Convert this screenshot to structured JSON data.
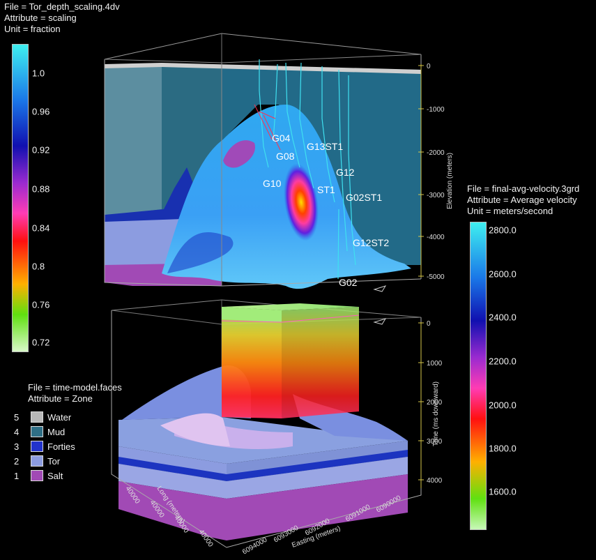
{
  "depth_scaling": {
    "file": "File = Tor_depth_scaling.4dv",
    "attribute": "Attribute = scaling",
    "unit": "Unit = fraction",
    "ticks": [
      "1.0",
      "0.96",
      "0.92",
      "0.88",
      "0.84",
      "0.8",
      "0.76",
      "0.72"
    ]
  },
  "velocity": {
    "file": "File = final-avg-velocity.3grd",
    "attribute": "Attribute = Average velocity",
    "unit": "Unit = meters/second",
    "ticks": [
      "2800.0",
      "2600.0",
      "2400.0",
      "2200.0",
      "2000.0",
      "1800.0",
      "1600.0"
    ]
  },
  "zones": {
    "file": "File = time-model.faces",
    "attribute": "Attribute = Zone",
    "items": [
      {
        "num": "5",
        "label": "Water",
        "color": "#b8b8b8"
      },
      {
        "num": "4",
        "label": "Mud",
        "color": "#2f6f86"
      },
      {
        "num": "3",
        "label": "Forties",
        "color": "#2233cc"
      },
      {
        "num": "2",
        "label": "Tor",
        "color": "#8c9ce0"
      },
      {
        "num": "1",
        "label": "Salt",
        "color": "#a14ab5"
      }
    ]
  },
  "wells": [
    "G04",
    "G08",
    "G13ST1",
    "G12",
    "G10",
    "ST1",
    "G02ST1",
    "G12ST2",
    "G02"
  ],
  "upper_axis": {
    "label": "Elevation (meters)",
    "ticks": [
      "0",
      "-1000",
      "-2000",
      "-3000",
      "-4000",
      "-5000"
    ]
  },
  "lower_axis": {
    "label": "Time (ms downward)",
    "ticks": [
      "0",
      "1000",
      "2000",
      "3000",
      "4000"
    ]
  },
  "easting_axis": {
    "label": "Easting (meters)",
    "ticks": [
      "6094000",
      "6093000",
      "6092000",
      "6091000",
      "6090000"
    ]
  },
  "northing_axis": {
    "label": "Long (meters)",
    "ticks": [
      "40000",
      "40000",
      "40000",
      "40000"
    ]
  }
}
